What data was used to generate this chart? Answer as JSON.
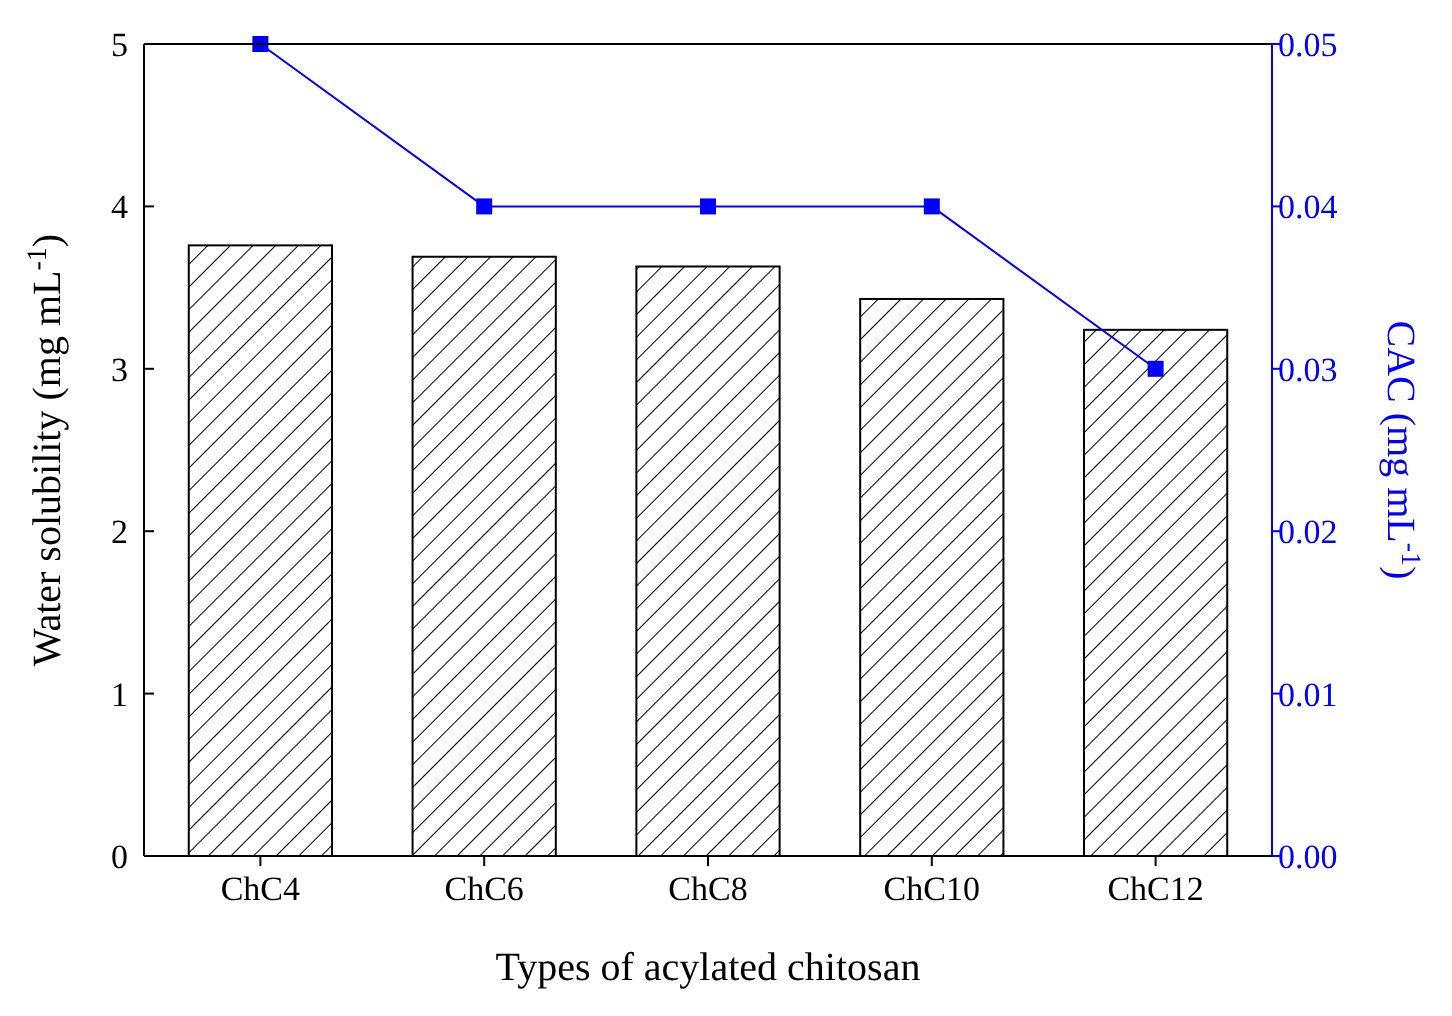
{
  "chart_data": {
    "type": "bar",
    "xlabel": "Types of acylated chitosan",
    "ylabel": "Water solubility (mg mL$^{-1}$)",
    "y2label": "CAC (mg mL$^{-1}$)",
    "categories": [
      "ChC4",
      "ChC6",
      "ChC8",
      "ChC10",
      "ChC12"
    ],
    "series": [
      {
        "color": "#000000",
        "values": [
          3.76,
          3.69,
          3.63,
          3.43,
          3.24
        ]
      },
      {
        "type": "line",
        "axis": "y2",
        "color": "#0000ff",
        "marker": "square",
        "line_style": "solid",
        "values": [
          0.05,
          0.04,
          0.04,
          0.04,
          0.03
        ]
      }
    ],
    "ylim": [
      0,
      5
    ],
    "yticks": [
      0,
      1,
      2,
      3,
      4,
      5
    ],
    "y2lim": [
      0,
      0.05
    ],
    "y2ticks": [
      {
        "value": 0,
        "label": "0.00"
      },
      {
        "value": 0.01,
        "label": "0.01"
      },
      {
        "value": 0.02,
        "label": "0.02"
      },
      {
        "value": 0.03,
        "label": "0.03"
      },
      {
        "value": 0.04,
        "label": "0.04"
      },
      {
        "value": 0.05,
        "label": "0.05"
      }
    ],
    "grid": false
  }
}
